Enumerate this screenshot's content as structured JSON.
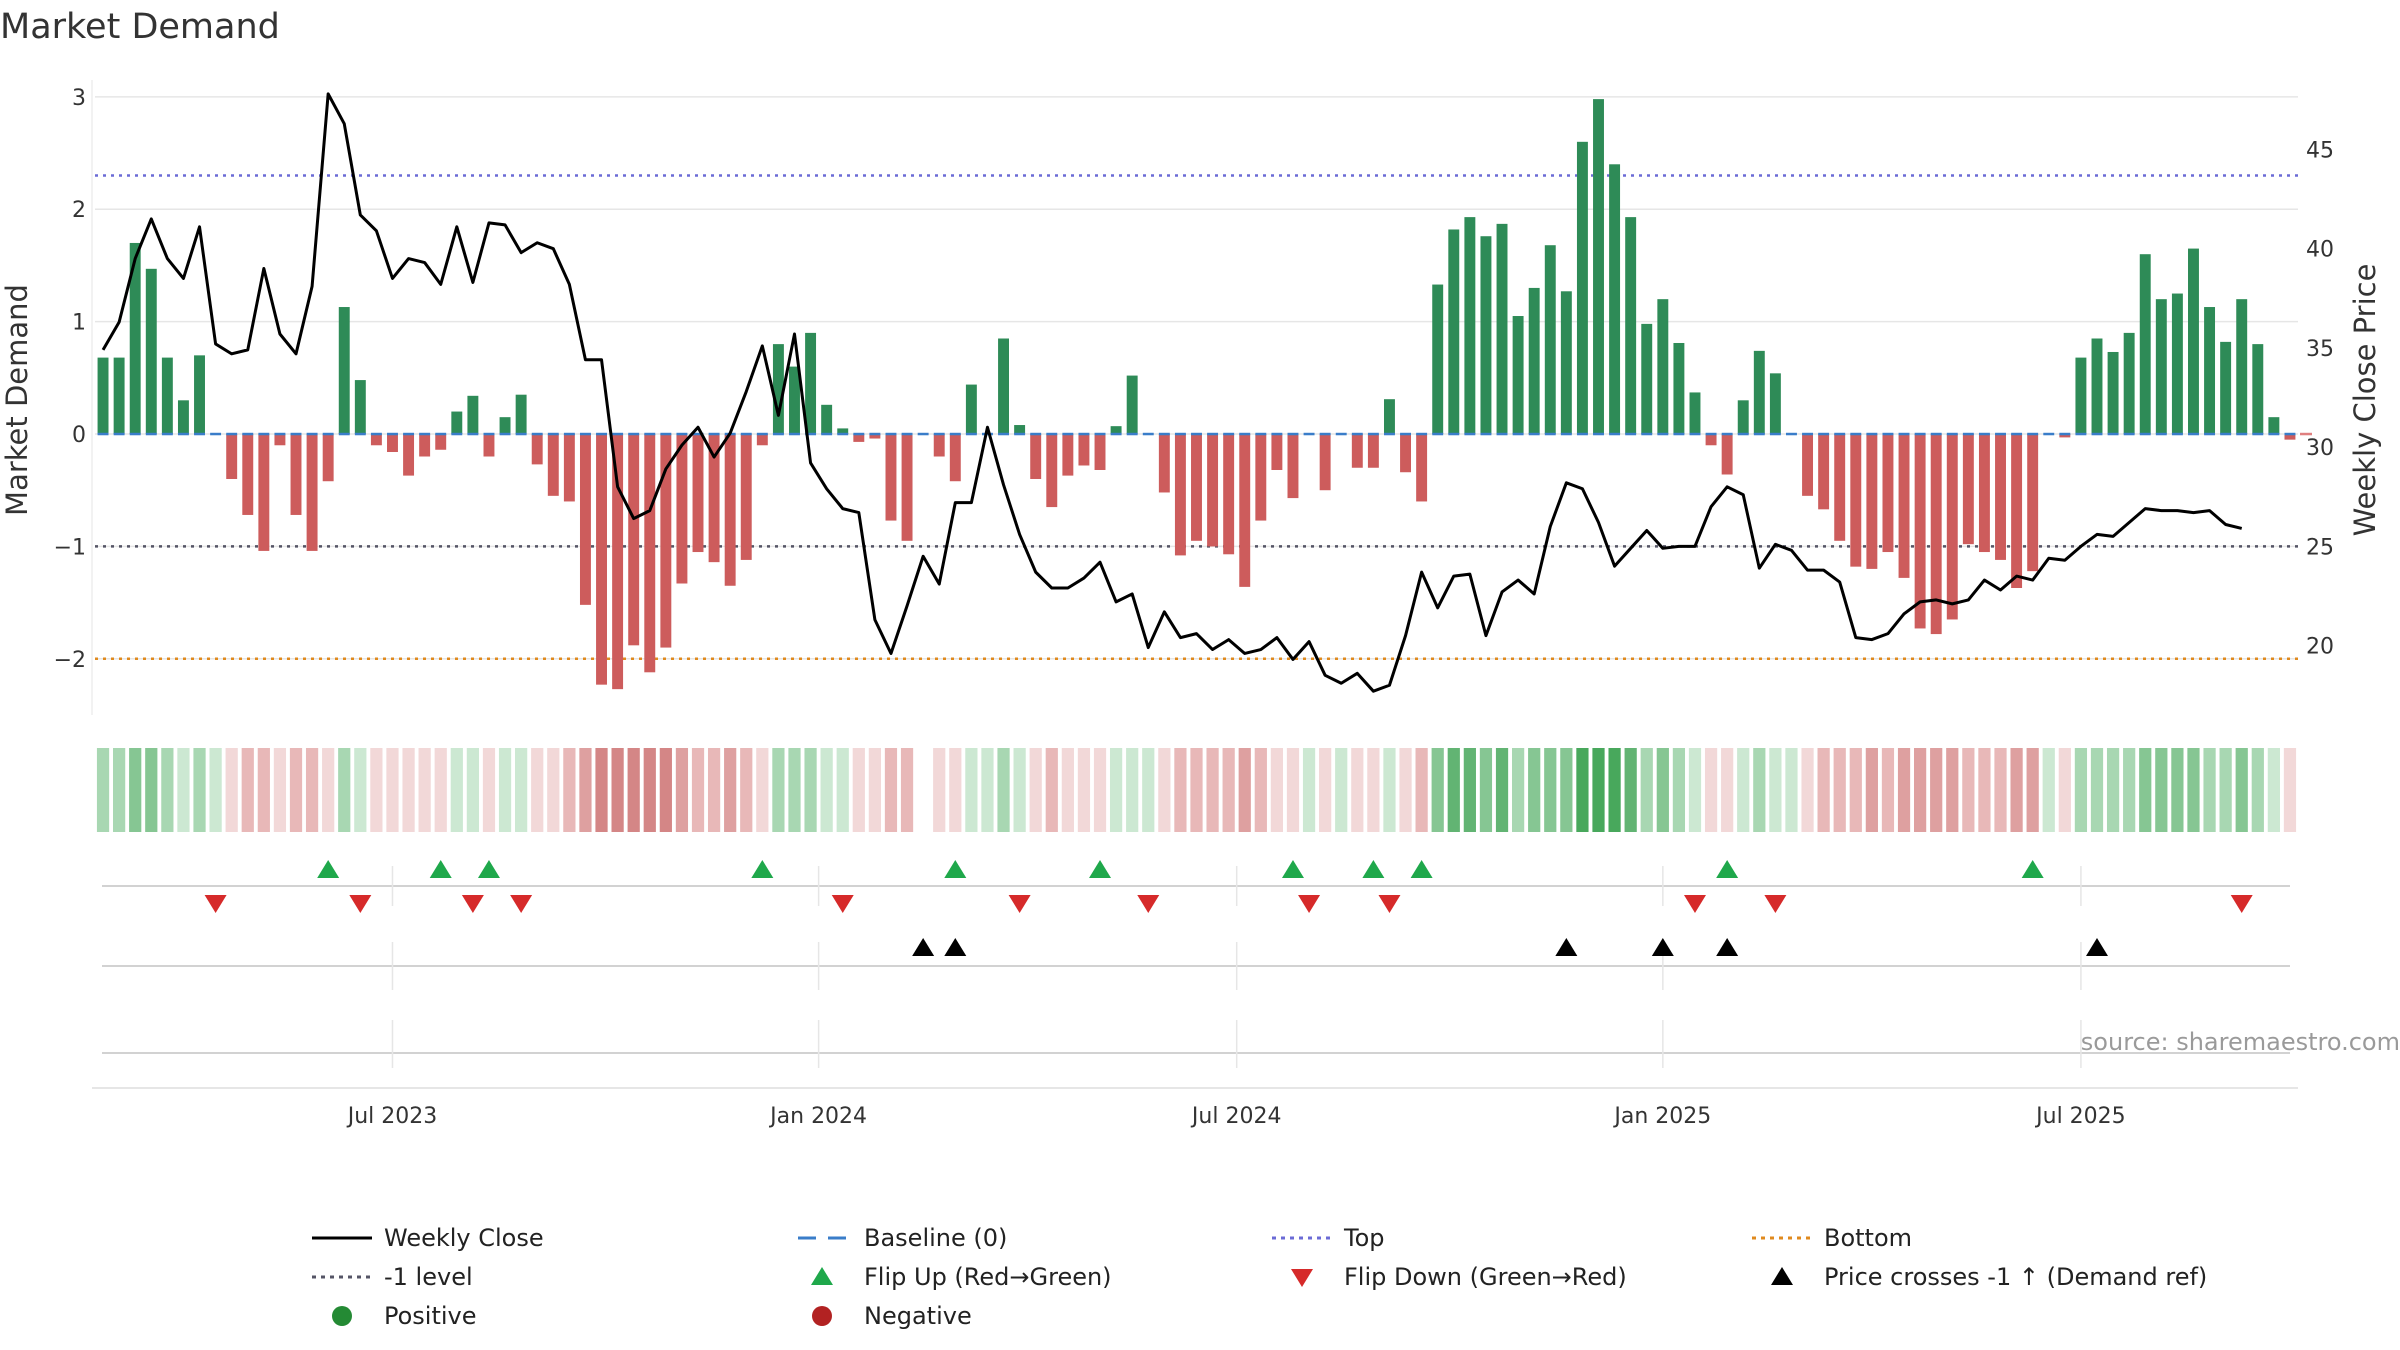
{
  "chart_data": {
    "type": "bar",
    "title": "Market Demand",
    "ylabel_left": "Market Demand",
    "ylabel_right": "Weekly Close Price",
    "source_text": "source: sharemaestro.com",
    "ylim_left": [
      -2.5,
      3.15
    ],
    "ylim_right": [
      16.5,
      48.5
    ],
    "yticks_left": [
      {
        "value": 3,
        "label": "3"
      },
      {
        "value": 2,
        "label": "2"
      },
      {
        "value": 1,
        "label": "1"
      },
      {
        "value": 0,
        "label": "0"
      },
      {
        "value": -1,
        "label": "−1"
      },
      {
        "value": -2,
        "label": "−2"
      }
    ],
    "yticks_right": [
      {
        "value": 45,
        "label": "45"
      },
      {
        "value": 40,
        "label": "40"
      },
      {
        "value": 35,
        "label": "35"
      },
      {
        "value": 30,
        "label": "30"
      },
      {
        "value": 25,
        "label": "25"
      },
      {
        "value": 20,
        "label": "20"
      }
    ],
    "xticks": [
      {
        "index": 18,
        "label": "Jul 2023"
      },
      {
        "index": 44.5,
        "label": "Jan 2024"
      },
      {
        "index": 70.5,
        "label": "Jul 2024"
      },
      {
        "index": 97,
        "label": "Jan 2025"
      },
      {
        "index": 123,
        "label": "Jul 2025"
      }
    ],
    "reference_lines": [
      {
        "name": "Top",
        "value": 2.3,
        "color": "#6b6bd6"
      },
      {
        "name": "-1 level",
        "value": -1,
        "color": "#555566"
      },
      {
        "name": "Bottom",
        "value": -2,
        "color": "#e08a1e"
      }
    ],
    "demand": [
      0.68,
      0.68,
      1.7,
      1.47,
      0.68,
      0.3,
      0.7,
      0,
      -0.4,
      -0.72,
      -1.04,
      -0.1,
      -0.72,
      -1.04,
      -0.42,
      1.13,
      0.48,
      -0.1,
      -0.16,
      -0.37,
      -0.2,
      -0.14,
      0.2,
      0.34,
      -0.2,
      0.15,
      0.35,
      -0.27,
      -0.55,
      -0.6,
      -1.52,
      -2.23,
      -2.27,
      -1.88,
      -2.12,
      -1.9,
      -1.33,
      -1.05,
      -1.14,
      -1.35,
      -1.12,
      -0.1,
      0.8,
      0.6,
      0.9,
      0.26,
      0.05,
      -0.07,
      -0.04,
      -0.77,
      -0.95,
      0,
      -0.2,
      -0.42,
      0.44,
      0,
      0.85,
      0.08,
      -0.4,
      -0.65,
      -0.37,
      -0.28,
      -0.32,
      0.07,
      0.52,
      0,
      -0.52,
      -1.08,
      -0.95,
      -1,
      -1.07,
      -1.36,
      -0.77,
      -0.32,
      -0.57,
      0,
      -0.5,
      0,
      -0.3,
      -0.3,
      0.31,
      -0.34,
      -0.6,
      1.33,
      1.82,
      1.93,
      1.76,
      1.87,
      1.05,
      1.3,
      1.68,
      1.27,
      2.6,
      2.98,
      2.4,
      1.93,
      0.98,
      1.2,
      0.81,
      0.37,
      -0.1,
      -0.36,
      0.3,
      0.74,
      0.54,
      0,
      -0.55,
      -0.67,
      -0.95,
      -1.18,
      -1.2,
      -1.05,
      -1.28,
      -1.73,
      -1.78,
      -1.65,
      -0.98,
      -1.05,
      -1.12,
      -1.37,
      -1.22,
      0,
      -0.03,
      0.68,
      0.85,
      0.73,
      0.9,
      1.6,
      1.2,
      1.25,
      1.65,
      1.13,
      0.82,
      1.2,
      0.8,
      0.15,
      -0.05
    ],
    "series": [
      {
        "name": "Weekly Close",
        "values": [
          34.9,
          36.3,
          39.5,
          41.5,
          39.5,
          38.5,
          41.1,
          35.2,
          34.7,
          34.9,
          39.0,
          35.7,
          34.7,
          38.1,
          47.8,
          46.3,
          41.7,
          40.9,
          38.5,
          39.5,
          39.3,
          38.2,
          41.1,
          38.3,
          41.3,
          41.2,
          39.8,
          40.3,
          40.0,
          38.2,
          34.4,
          34.4,
          28.0,
          26.4,
          26.8,
          28.9,
          30.1,
          31.0,
          29.5,
          30.7,
          32.8,
          35.1,
          31.6,
          35.7,
          29.2,
          27.9,
          26.9,
          26.7,
          21.3,
          19.6,
          22.0,
          24.5,
          23.1,
          27.2,
          27.2,
          31.0,
          28.1,
          25.6,
          23.7,
          22.9,
          22.9,
          23.4,
          24.2,
          22.2,
          22.6,
          19.9,
          21.7,
          20.4,
          20.6,
          19.8,
          20.3,
          19.6,
          19.8,
          20.4,
          19.3,
          20.2,
          18.5,
          18.1,
          18.6,
          17.7,
          18.0,
          20.5,
          23.7,
          21.9,
          23.5,
          23.6,
          20.5,
          22.7,
          23.3,
          22.6,
          26.0,
          28.2,
          27.9,
          26.2,
          24.0,
          24.9,
          25.8,
          24.9,
          25.0,
          25.0,
          27.0,
          28.0,
          27.6,
          23.9,
          25.1,
          24.8,
          23.8,
          23.8,
          23.2,
          20.4,
          20.3,
          20.6,
          21.6,
          22.2,
          22.3,
          22.1,
          22.3,
          23.3,
          22.8,
          23.5,
          23.3,
          24.4,
          24.3,
          25.0,
          25.6,
          25.5,
          26.2,
          26.9,
          26.8,
          26.8,
          26.7,
          26.8,
          26.1,
          25.9
        ]
      },
      {
        "name": "Baseline (0)",
        "value": 0,
        "color": "#3a7dc9"
      }
    ],
    "heat_strip": {
      "blank_index": 51
    },
    "flip_up_indices": [
      14,
      21,
      24,
      41,
      53,
      62,
      74,
      79,
      82,
      101,
      120
    ],
    "flip_down_indices": [
      7,
      16,
      23,
      26,
      46,
      57,
      65,
      75,
      80,
      99,
      104,
      133
    ],
    "price_cross_indices": [
      51,
      53,
      91,
      97,
      101,
      124
    ],
    "legend": [
      {
        "label": "Weekly Close",
        "color": "#000000",
        "kind": "line"
      },
      {
        "label": "Baseline (0)",
        "color": "#3a7dc9",
        "kind": "dash"
      },
      {
        "label": "Top",
        "color": "#6b6bd6",
        "kind": "dot"
      },
      {
        "label": "Bottom",
        "color": "#e08a1e",
        "kind": "dot"
      },
      {
        "label": "-1 level",
        "color": "#555566",
        "kind": "dot"
      },
      {
        "label": "Flip Up (Red→Green)",
        "color": "#1fa84b",
        "kind": "tri-up"
      },
      {
        "label": "Flip Down (Green→Red)",
        "color": "#d62a2a",
        "kind": "tri-down"
      },
      {
        "label": "Price crosses -1 ↑ (Demand ref)",
        "color": "#000000",
        "kind": "tri-up"
      },
      {
        "label": "Positive",
        "color": "#248a34",
        "kind": "dot-marker"
      },
      {
        "label": "Negative",
        "color": "#b22222",
        "kind": "dot-marker"
      }
    ],
    "colors": {
      "positive_bar": "#2e8b57",
      "negative_bar": "#cd5c5c",
      "close_line": "#000000",
      "grid": "#e6e6e6"
    }
  }
}
